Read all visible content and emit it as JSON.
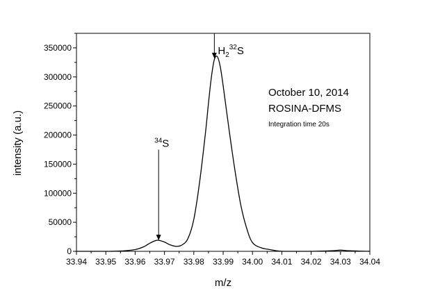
{
  "chart_data": {
    "type": "line",
    "title": "",
    "xlabel": "m/z",
    "ylabel": "intensity (a.u.)",
    "xlim": [
      33.94,
      34.04
    ],
    "ylim": [
      0,
      375000
    ],
    "x_ticks": [
      "33.94",
      "33.95",
      "33.96",
      "33.97",
      "33.98",
      "33.99",
      "34.00",
      "34.01",
      "34.02",
      "34.03",
      "34.04"
    ],
    "y_ticks": [
      "0",
      "50000",
      "100000",
      "150000",
      "200000",
      "250000",
      "300000",
      "350000"
    ],
    "grid": false,
    "series": [
      {
        "x": [
          33.94,
          33.95,
          33.955,
          33.96,
          33.963,
          33.965,
          33.967,
          33.968,
          33.97,
          33.972,
          33.974,
          33.976,
          33.978,
          33.98,
          33.982,
          33.984,
          33.985,
          33.986,
          33.987,
          33.988,
          33.989,
          33.99,
          33.992,
          33.994,
          33.996,
          33.998,
          34.0,
          34.003,
          34.006,
          34.01,
          34.02,
          34.027,
          34.03,
          34.033,
          34.04
        ],
        "y": [
          0,
          0,
          500,
          3000,
          8000,
          14000,
          18500,
          19000,
          16000,
          11000,
          8500,
          11000,
          22000,
          55000,
          120000,
          205000,
          255000,
          300000,
          330000,
          335000,
          318000,
          285000,
          210000,
          140000,
          80000,
          40000,
          15000,
          6000,
          3000,
          0,
          0,
          1000,
          2000,
          1000,
          0
        ]
      }
    ],
    "annotations": {
      "date": "October 10, 2014",
      "instrument": "ROSINA-DFMS",
      "integration": "Integration time 20s"
    },
    "peaks": [
      {
        "sup": "34",
        "base": "S",
        "x": 33.968,
        "y": 19000,
        "label_y": 175000
      },
      {
        "base": "H",
        "sub": "2",
        "sup": "32",
        "tail": "S",
        "x": 33.987,
        "y": 332000,
        "label_y": 375000
      }
    ]
  }
}
